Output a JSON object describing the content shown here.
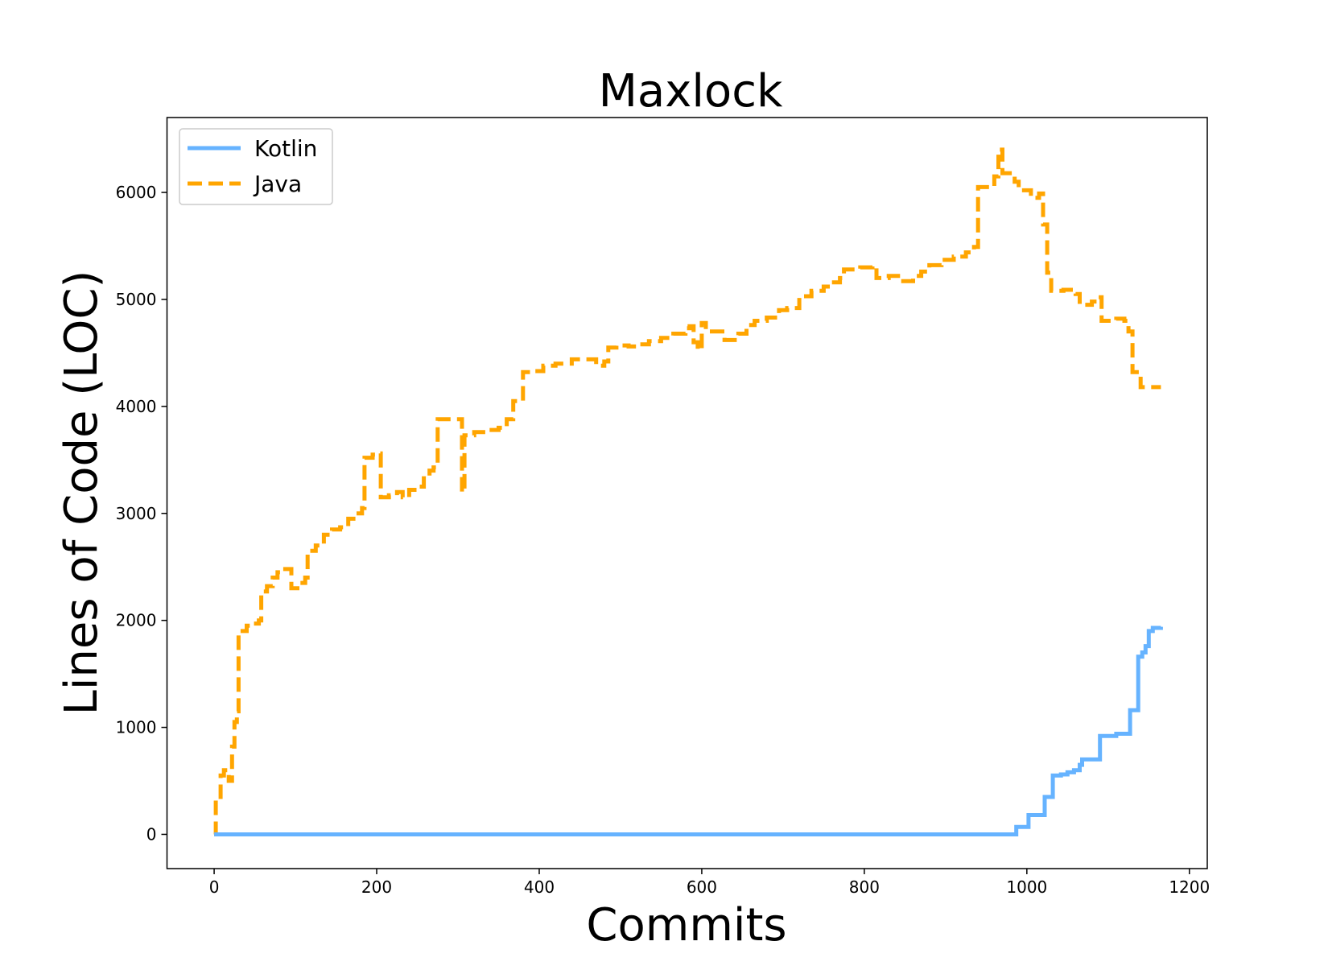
{
  "chart_data": {
    "type": "line",
    "title": "Maxlock",
    "xlabel": "Commits",
    "ylabel": "Lines of Code (LOC)",
    "xlim": [
      -58,
      1222
    ],
    "ylim": [
      -320,
      6700
    ],
    "x_ticks": [
      0,
      200,
      400,
      600,
      800,
      1000,
      1200
    ],
    "y_ticks": [
      0,
      1000,
      2000,
      3000,
      4000,
      5000,
      6000
    ],
    "grid": false,
    "legend_position": "top-left",
    "series": [
      {
        "name": "Kotlin",
        "color": "#66b3ff",
        "style": "solid",
        "step_points": [
          [
            0,
            0
          ],
          [
            985,
            0
          ],
          [
            987,
            70
          ],
          [
            1000,
            70
          ],
          [
            1002,
            180
          ],
          [
            1020,
            180
          ],
          [
            1022,
            350
          ],
          [
            1030,
            350
          ],
          [
            1032,
            550
          ],
          [
            1042,
            560
          ],
          [
            1050,
            580
          ],
          [
            1058,
            600
          ],
          [
            1065,
            650
          ],
          [
            1068,
            700
          ],
          [
            1088,
            700
          ],
          [
            1090,
            920
          ],
          [
            1110,
            940
          ],
          [
            1125,
            940
          ],
          [
            1127,
            1160
          ],
          [
            1135,
            1160
          ],
          [
            1137,
            1660
          ],
          [
            1142,
            1700
          ],
          [
            1146,
            1760
          ],
          [
            1150,
            1900
          ],
          [
            1155,
            1930
          ],
          [
            1165,
            1940
          ]
        ]
      },
      {
        "name": "Java",
        "color": "#ffa500",
        "style": "dashed",
        "step_points": [
          [
            0,
            0
          ],
          [
            2,
            350
          ],
          [
            8,
            550
          ],
          [
            12,
            600
          ],
          [
            18,
            500
          ],
          [
            22,
            820
          ],
          [
            25,
            1050
          ],
          [
            28,
            1150
          ],
          [
            30,
            1900
          ],
          [
            40,
            1950
          ],
          [
            48,
            1970
          ],
          [
            55,
            2000
          ],
          [
            58,
            2270
          ],
          [
            65,
            2320
          ],
          [
            72,
            2400
          ],
          [
            78,
            2450
          ],
          [
            85,
            2480
          ],
          [
            95,
            2300
          ],
          [
            105,
            2350
          ],
          [
            112,
            2400
          ],
          [
            115,
            2650
          ],
          [
            125,
            2700
          ],
          [
            135,
            2800
          ],
          [
            145,
            2850
          ],
          [
            155,
            2870
          ],
          [
            165,
            2950
          ],
          [
            175,
            3000
          ],
          [
            182,
            3050
          ],
          [
            185,
            3520
          ],
          [
            195,
            3550
          ],
          [
            200,
            3560
          ],
          [
            205,
            3150
          ],
          [
            215,
            3170
          ],
          [
            225,
            3200
          ],
          [
            232,
            3150
          ],
          [
            240,
            3220
          ],
          [
            250,
            3250
          ],
          [
            258,
            3350
          ],
          [
            265,
            3400
          ],
          [
            270,
            3430
          ],
          [
            275,
            3880
          ],
          [
            295,
            3880
          ],
          [
            305,
            3200
          ],
          [
            308,
            3730
          ],
          [
            320,
            3760
          ],
          [
            335,
            3780
          ],
          [
            350,
            3800
          ],
          [
            360,
            3880
          ],
          [
            368,
            4050
          ],
          [
            380,
            4320
          ],
          [
            395,
            4330
          ],
          [
            405,
            4380
          ],
          [
            420,
            4400
          ],
          [
            440,
            4440
          ],
          [
            460,
            4440
          ],
          [
            470,
            4380
          ],
          [
            480,
            4420
          ],
          [
            485,
            4550
          ],
          [
            495,
            4570
          ],
          [
            510,
            4560
          ],
          [
            520,
            4580
          ],
          [
            535,
            4610
          ],
          [
            550,
            4640
          ],
          [
            565,
            4680
          ],
          [
            580,
            4730
          ],
          [
            585,
            4750
          ],
          [
            590,
            4600
          ],
          [
            595,
            4530
          ],
          [
            600,
            4780
          ],
          [
            605,
            4700
          ],
          [
            620,
            4700
          ],
          [
            628,
            4620
          ],
          [
            645,
            4680
          ],
          [
            655,
            4760
          ],
          [
            665,
            4800
          ],
          [
            680,
            4830
          ],
          [
            695,
            4900
          ],
          [
            705,
            4920
          ],
          [
            720,
            5030
          ],
          [
            735,
            5080
          ],
          [
            750,
            5120
          ],
          [
            760,
            5160
          ],
          [
            770,
            5200
          ],
          [
            775,
            5280
          ],
          [
            795,
            5300
          ],
          [
            810,
            5310
          ],
          [
            815,
            5200
          ],
          [
            830,
            5220
          ],
          [
            845,
            5170
          ],
          [
            860,
            5220
          ],
          [
            870,
            5260
          ],
          [
            880,
            5320
          ],
          [
            895,
            5370
          ],
          [
            910,
            5400
          ],
          [
            925,
            5440
          ],
          [
            935,
            5490
          ],
          [
            940,
            6050
          ],
          [
            955,
            6060
          ],
          [
            960,
            6150
          ],
          [
            965,
            6400
          ],
          [
            970,
            6180
          ],
          [
            985,
            6100
          ],
          [
            990,
            6020
          ],
          [
            1000,
            6020
          ],
          [
            1005,
            5950
          ],
          [
            1015,
            5990
          ],
          [
            1020,
            5700
          ],
          [
            1025,
            5250
          ],
          [
            1030,
            5080
          ],
          [
            1045,
            5090
          ],
          [
            1060,
            5050
          ],
          [
            1065,
            4950
          ],
          [
            1080,
            4980
          ],
          [
            1088,
            5020
          ],
          [
            1092,
            4800
          ],
          [
            1110,
            4820
          ],
          [
            1120,
            4800
          ],
          [
            1125,
            4700
          ],
          [
            1130,
            4320
          ],
          [
            1140,
            4180
          ],
          [
            1165,
            4180
          ]
        ]
      }
    ]
  }
}
